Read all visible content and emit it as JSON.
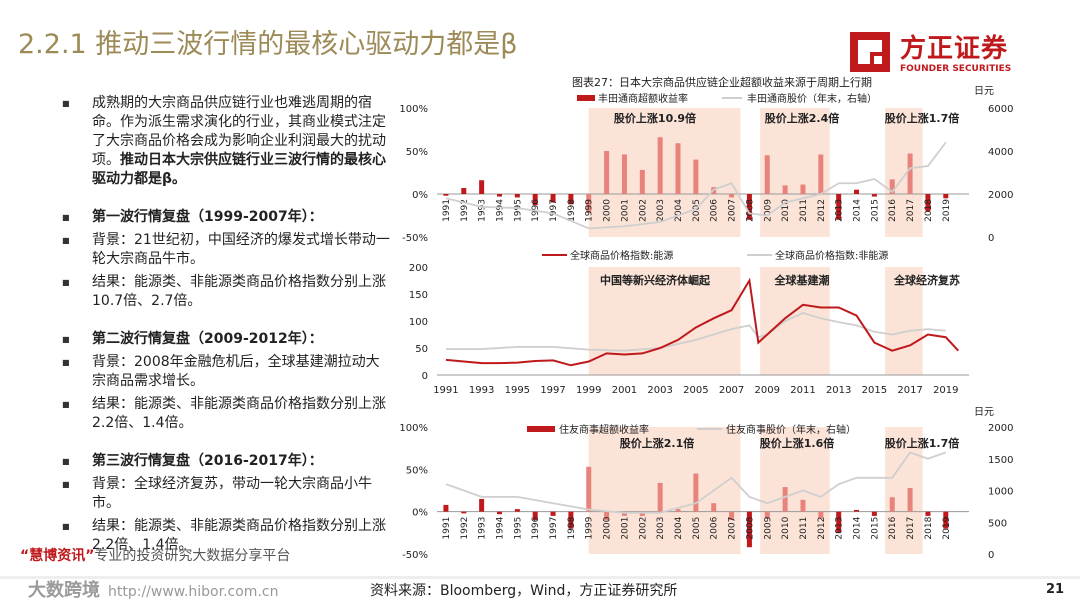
{
  "slide": {
    "title": "2.2.1 推动三波行情的最核心驱动力都是β",
    "page_number": "21",
    "source_note": "资料来源：Bloomberg，Wind，方正证券研究所",
    "logo_cn": "方正证券",
    "logo_en": "FOUNDER SECURITIES",
    "watermark_line1_brand": "“慧博资讯”",
    "watermark_line1_text": "专业的投资研究大数据分享平台",
    "watermark_line2_big": "大数跨境",
    "watermark_line2_url": "http://www.hibor.com.cn"
  },
  "bullets": [
    {
      "text": "成熟期的大宗商品供应链行业也难逃周期的宿命。作为派生需求演化的行业，其商业模式注定了大宗商品价格会成为影响企业利润最大的扰动项。",
      "bold": "推动日本大宗供应链行业三波行情的最核心驱动力都是β。"
    },
    {
      "text": "",
      "bold": "第一波行情复盘（1999-2007年）："
    },
    {
      "text": "背景：21世纪初，中国经济的爆发式增长带动一轮大宗商品牛市。",
      "bold": ""
    },
    {
      "text": "结果：能源类、非能源类商品价格指数分别上涨10.7倍、2.7倍。",
      "bold": ""
    },
    {
      "text": "",
      "bold": "第二波行情复盘（2009-2012年）："
    },
    {
      "text": "背景：2008年金融危机后，全球基建潮拉动大宗商品需求增长。",
      "bold": ""
    },
    {
      "text": "结果：能源类、非能源类商品价格指数分别上涨2.2倍、1.4倍。",
      "bold": ""
    },
    {
      "text": "",
      "bold": "第三波行情复盘（2016-2017年）："
    },
    {
      "text": "背景：全球经济复苏，带动一轮大宗商品小牛市。",
      "bold": ""
    },
    {
      "text": "结果：能源类、非能源类商品价格指数分别上涨2.2倍、1.4倍。",
      "bold": ""
    }
  ],
  "colors": {
    "accent_red": "#c0191c",
    "gold": "#9c8a57",
    "highlight": "#fbe3d8",
    "bar_light": "#e8837c",
    "gray_line": "#cfcfcf"
  },
  "chart_data": [
    {
      "type": "bar",
      "title": "图表27：日本大宗商品供应链企业超额收益来源于周期上行期",
      "series": [
        {
          "name": "丰田通商超额收益率",
          "x": [
            1991,
            1992,
            1993,
            1994,
            1995,
            1996,
            1997,
            1998,
            1999,
            2000,
            2001,
            2002,
            2003,
            2004,
            2005,
            2006,
            2007,
            2008,
            2009,
            2010,
            2011,
            2012,
            2013,
            2014,
            2015,
            2016,
            2017,
            2018,
            2019
          ],
          "values": [
            -2,
            7,
            16,
            -3,
            -4,
            -13,
            -10,
            -12,
            -22,
            50,
            46,
            28,
            66,
            59,
            40,
            8,
            -4,
            -30,
            45,
            10,
            11,
            46,
            -30,
            5,
            -3,
            17,
            47,
            -20,
            -5
          ]
        },
        {
          "name": "丰田通商股价（年末，右轴）",
          "x": [
            1991,
            1993,
            1995,
            1997,
            1999,
            2001,
            2003,
            2005,
            2006,
            2007,
            2008,
            2009,
            2010,
            2011,
            2012,
            2013,
            2014,
            2015,
            2016,
            2017,
            2018,
            2019
          ],
          "values": [
            1800,
            1400,
            1350,
            1100,
            400,
            500,
            700,
            1300,
            2200,
            2500,
            1100,
            1000,
            1600,
            1800,
            2000,
            2500,
            2500,
            2700,
            2100,
            3200,
            3300,
            4400
          ]
        }
      ],
      "ylim": [
        -50,
        100
      ],
      "y_ticks": [
        "100%",
        "50%",
        "0%",
        "-50%"
      ],
      "y2lim": [
        0,
        6000
      ],
      "y2_ticks": [
        "6000",
        "4000",
        "2000",
        "0"
      ],
      "y2_unit": "日元",
      "annotations": [
        "股价上涨10.9倍",
        "股价上涨2.4倍",
        "股价上涨1.7倍"
      ]
    },
    {
      "type": "line",
      "series": [
        {
          "name": "全球商品价格指数:能源",
          "x": [
            1991,
            1992,
            1993,
            1994,
            1995,
            1996,
            1997,
            1998,
            1999,
            2000,
            2001,
            2002,
            2003,
            2004,
            2005,
            2006,
            2007,
            2008,
            2008.5,
            2009,
            2010,
            2011,
            2012,
            2013,
            2014,
            2015,
            2016,
            2017,
            2018,
            2019,
            2019.7
          ],
          "values": [
            28,
            25,
            22,
            22,
            23,
            26,
            27,
            18,
            25,
            40,
            38,
            40,
            50,
            65,
            88,
            105,
            120,
            175,
            60,
            75,
            105,
            130,
            125,
            125,
            110,
            60,
            45,
            55,
            75,
            70,
            45
          ]
        },
        {
          "name": "全球商品价格指数:非能源",
          "x": [
            1991,
            1993,
            1995,
            1997,
            1999,
            2001,
            2003,
            2005,
            2007,
            2008,
            2008.5,
            2009,
            2010,
            2011,
            2012,
            2013,
            2014,
            2015,
            2016,
            2017,
            2018,
            2019
          ],
          "values": [
            48,
            48,
            52,
            52,
            47,
            45,
            50,
            65,
            85,
            92,
            70,
            75,
            100,
            115,
            105,
            98,
            92,
            80,
            75,
            82,
            85,
            82
          ]
        }
      ],
      "ylim": [
        0,
        200
      ],
      "y_ticks": [
        "200",
        "150",
        "100",
        "50",
        "0"
      ],
      "x_ticks": [
        "1991",
        "1993",
        "1995",
        "1997",
        "1999",
        "2001",
        "2003",
        "2005",
        "2007",
        "2009",
        "2011",
        "2013",
        "2015",
        "2017",
        "2019"
      ],
      "annotations": [
        "中国等新兴经济体崛起",
        "全球基建潮",
        "全球经济复苏"
      ]
    },
    {
      "type": "bar",
      "series": [
        {
          "name": "住友商事超额收益率",
          "x": [
            1991,
            1992,
            1993,
            1994,
            1995,
            1996,
            1997,
            1998,
            1999,
            2000,
            2001,
            2002,
            2003,
            2004,
            2005,
            2006,
            2007,
            2008,
            2009,
            2010,
            2011,
            2012,
            2013,
            2014,
            2015,
            2016,
            2017,
            2018,
            2019
          ],
          "values": [
            8,
            -2,
            15,
            -3,
            3,
            -10,
            -5,
            -20,
            53,
            -10,
            -5,
            -5,
            34,
            3,
            45,
            10,
            -10,
            -42,
            -8,
            29,
            14,
            -8,
            -25,
            2,
            -5,
            17,
            28,
            -5,
            -20
          ]
        },
        {
          "name": "住友商事股价（年末，右轴）",
          "x": [
            1991,
            1993,
            1995,
            1997,
            1999,
            2001,
            2003,
            2005,
            2007,
            2008,
            2009,
            2010,
            2011,
            2012,
            2013,
            2014,
            2015,
            2016,
            2017,
            2018,
            2019
          ],
          "values": [
            1100,
            900,
            900,
            800,
            700,
            650,
            650,
            800,
            1200,
            900,
            800,
            900,
            1000,
            900,
            1100,
            1200,
            1200,
            1200,
            1600,
            1500,
            1600
          ]
        }
      ],
      "ylim": [
        -50,
        100
      ],
      "y_ticks": [
        "100%",
        "50%",
        "0%",
        "-50%"
      ],
      "y2lim": [
        0,
        2000
      ],
      "y2_ticks": [
        "2000",
        "1500",
        "1000",
        "500",
        "0"
      ],
      "y2_unit": "日元",
      "annotations": [
        "股价上涨2.1倍",
        "股价上涨1.6倍",
        "股价上涨1.7倍"
      ]
    }
  ]
}
